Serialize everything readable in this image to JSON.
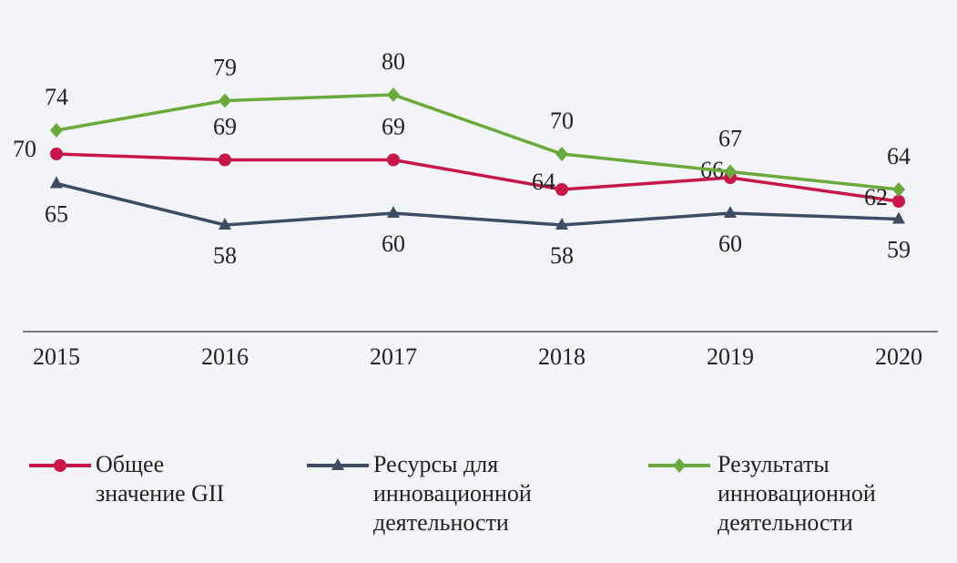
{
  "chart_data": {
    "type": "line",
    "categories": [
      "2015",
      "2016",
      "2017",
      "2018",
      "2019",
      "2020"
    ],
    "series": [
      {
        "name": "Общее значение GII",
        "color": "#c8164a",
        "marker": "circle",
        "values": [
          70,
          69,
          69,
          64,
          66,
          62
        ]
      },
      {
        "name": "Ресурсы для инновационной деятельности",
        "color": "#3d4b63",
        "marker": "triangle",
        "values": [
          65,
          58,
          60,
          58,
          60,
          59
        ]
      },
      {
        "name": "Результаты инновационной деятельности",
        "color": "#6aaa3a",
        "marker": "diamond",
        "values": [
          74,
          79,
          80,
          70,
          67,
          64
        ]
      }
    ],
    "ylim": [
      40,
      84
    ],
    "legend": "bottom"
  }
}
